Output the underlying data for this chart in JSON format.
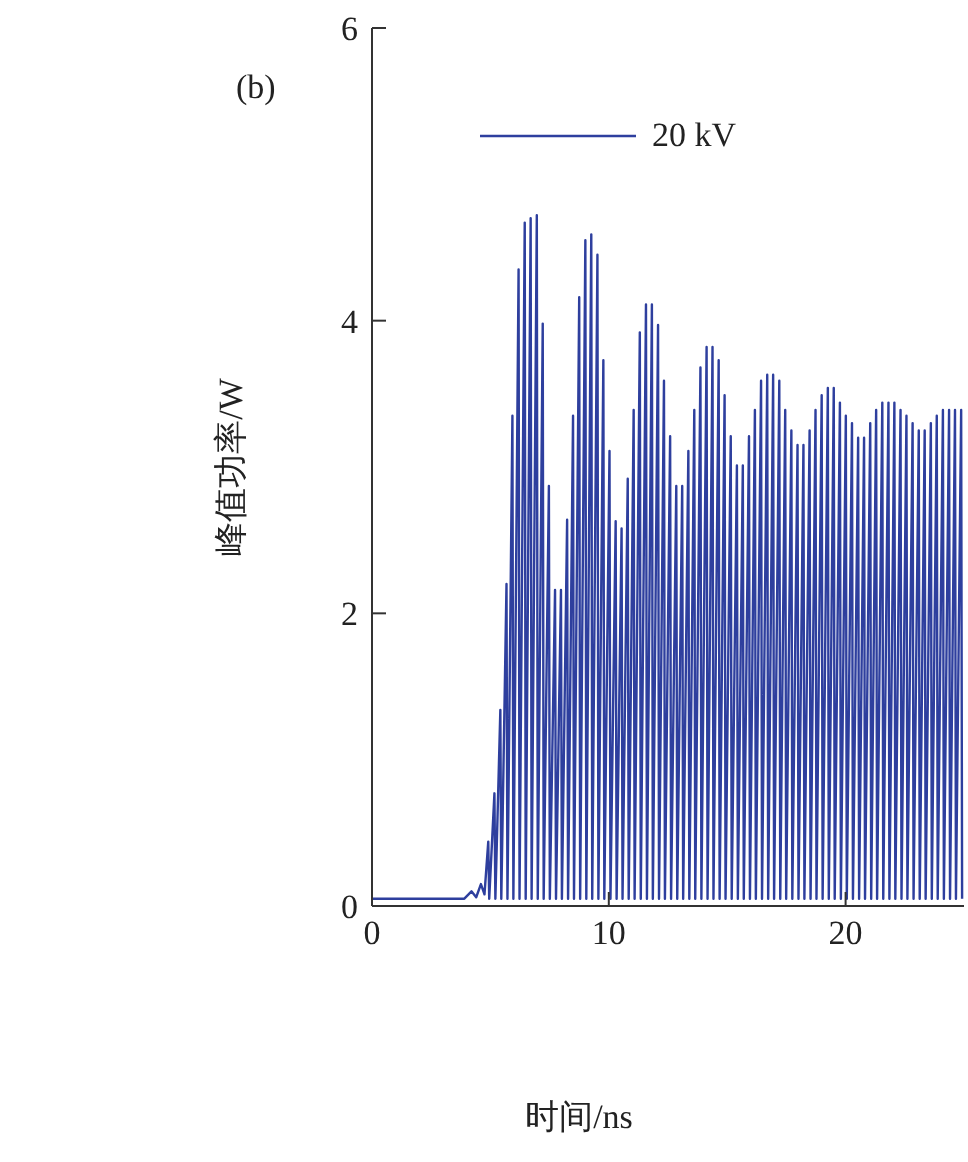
{
  "chart_data": {
    "type": "line",
    "xlabel": "时间/ns",
    "ylabel": "峰值功率/W",
    "annotations": [
      "(b)"
    ],
    "xlim": [
      0,
      25
    ],
    "xticks": [
      0,
      10,
      20
    ],
    "ylim": [
      0,
      6
    ],
    "yticks": [
      0,
      2,
      4,
      6
    ],
    "legend": "top",
    "marker": "none",
    "line_style": "solid",
    "series": [
      {
        "name": "20 kV",
        "color": "#2e3f9e",
        "x": [
          0,
          3.9,
          4.2,
          4.4,
          4.6,
          4.75,
          4.91,
          4.95,
          5.17,
          5.21,
          5.42,
          5.46,
          5.68,
          5.72,
          5.93,
          5.97,
          6.19,
          6.23,
          6.45,
          6.49,
          6.7,
          6.74,
          6.96,
          7.0,
          7.21,
          7.25,
          7.47,
          7.51,
          7.73,
          7.77,
          7.98,
          8.02,
          8.24,
          8.28,
          8.49,
          8.53,
          8.75,
          8.79,
          9.01,
          9.05,
          9.26,
          9.3,
          9.52,
          9.56,
          9.77,
          9.81,
          10.03,
          10.07,
          10.29,
          10.33,
          10.54,
          10.58,
          10.8,
          10.84,
          11.05,
          11.09,
          11.31,
          11.35,
          11.57,
          11.61,
          11.82,
          11.86,
          12.08,
          12.12,
          12.33,
          12.37,
          12.59,
          12.63,
          12.85,
          12.89,
          13.1,
          13.14,
          13.36,
          13.4,
          13.61,
          13.65,
          13.87,
          13.91,
          14.13,
          14.17,
          14.38,
          14.42,
          14.64,
          14.68,
          14.89,
          14.93,
          15.15,
          15.19,
          15.41,
          15.45,
          15.66,
          15.7,
          15.92,
          15.96,
          16.17,
          16.21,
          16.43,
          16.47,
          16.69,
          16.73,
          16.94,
          16.98,
          17.2,
          17.24,
          17.45,
          17.49,
          17.71,
          17.75,
          17.97,
          18.01,
          18.22,
          18.26,
          18.48,
          18.52,
          18.73,
          18.77,
          18.99,
          19.03,
          19.25,
          19.29,
          19.5,
          19.54,
          19.76,
          19.8,
          20.01,
          20.05,
          20.27,
          20.31,
          20.53,
          20.57,
          20.78,
          20.82,
          21.04,
          21.08,
          21.29,
          21.33,
          21.55,
          21.59,
          21.81,
          21.85,
          22.06,
          22.1,
          22.32,
          22.36,
          22.57,
          22.61,
          22.83,
          22.87,
          23.09,
          23.13,
          23.34,
          23.38,
          23.6,
          23.64,
          23.85,
          23.89,
          24.11,
          24.15,
          24.37,
          24.41,
          24.62,
          24.66,
          24.88,
          24.92
        ],
        "values": [
          0.05,
          0.05,
          0.1,
          0.06,
          0.15,
          0.08,
          0.44,
          0.05,
          0.77,
          0.05,
          1.34,
          0.05,
          2.2,
          0.05,
          3.35,
          0.05,
          4.35,
          0.05,
          4.67,
          0.05,
          4.7,
          0.05,
          4.72,
          0.05,
          3.98,
          0.05,
          2.87,
          0.05,
          2.16,
          0.05,
          2.16,
          0.05,
          2.64,
          0.05,
          3.35,
          0.05,
          4.16,
          0.05,
          4.55,
          0.05,
          4.59,
          0.05,
          4.45,
          0.05,
          3.73,
          0.05,
          3.11,
          0.05,
          2.63,
          0.05,
          2.58,
          0.05,
          2.92,
          0.05,
          3.39,
          0.05,
          3.92,
          0.05,
          4.11,
          0.05,
          4.11,
          0.05,
          3.97,
          0.05,
          3.59,
          0.05,
          3.21,
          0.05,
          2.87,
          0.05,
          2.87,
          0.05,
          3.11,
          0.05,
          3.39,
          0.05,
          3.68,
          0.05,
          3.82,
          0.05,
          3.82,
          0.05,
          3.73,
          0.05,
          3.49,
          0.05,
          3.21,
          0.05,
          3.01,
          0.05,
          3.01,
          0.05,
          3.21,
          0.05,
          3.39,
          0.05,
          3.59,
          0.05,
          3.63,
          0.05,
          3.63,
          0.05,
          3.59,
          0.05,
          3.39,
          0.05,
          3.25,
          0.05,
          3.15,
          0.05,
          3.15,
          0.05,
          3.25,
          0.05,
          3.39,
          0.05,
          3.49,
          0.05,
          3.54,
          0.05,
          3.54,
          0.05,
          3.44,
          0.05,
          3.35,
          0.05,
          3.3,
          0.05,
          3.2,
          0.05,
          3.2,
          0.05,
          3.3,
          0.05,
          3.39,
          0.05,
          3.44,
          0.05,
          3.44,
          0.05,
          3.44,
          0.05,
          3.39,
          0.05,
          3.35,
          0.05,
          3.3,
          0.05,
          3.25,
          0.05,
          3.25,
          0.05,
          3.3,
          0.05,
          3.35,
          0.05,
          3.39,
          0.05,
          3.39,
          0.05,
          3.39,
          0.05,
          3.39,
          0.05
        ]
      }
    ]
  }
}
